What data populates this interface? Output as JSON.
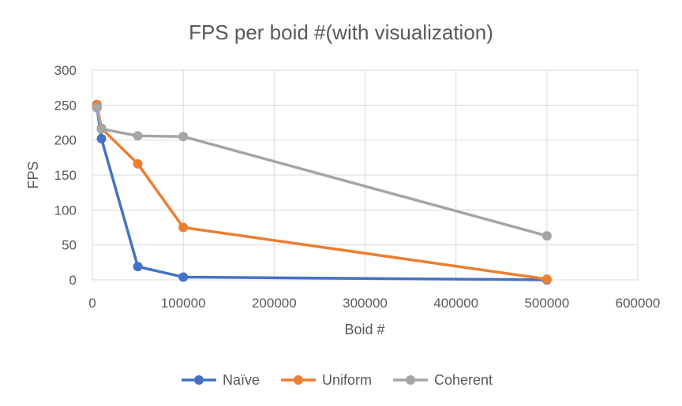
{
  "chart_data": {
    "type": "line",
    "title": "FPS per boid #(with visualization)",
    "xlabel": "Boid #",
    "ylabel": "FPS",
    "xlim": [
      0,
      600000
    ],
    "ylim": [
      0,
      300
    ],
    "xticks": [
      "0",
      "100000",
      "200000",
      "300000",
      "400000",
      "500000",
      "600000"
    ],
    "yticks": [
      "0",
      "50",
      "100",
      "150",
      "200",
      "250",
      "300"
    ],
    "grid": true,
    "legend_position": "bottom",
    "series": [
      {
        "name": "Naïve",
        "color": "#4472c4",
        "x": [
          5000,
          10000,
          50000,
          100000,
          500000
        ],
        "y": [
          247,
          202,
          19,
          4,
          0
        ]
      },
      {
        "name": "Uniform",
        "color": "#ed7d31",
        "x": [
          5000,
          10000,
          50000,
          100000,
          500000
        ],
        "y": [
          251,
          217,
          166,
          75,
          1
        ]
      },
      {
        "name": "Coherent",
        "color": "#a5a5a5",
        "x": [
          5000,
          10000,
          50000,
          100000,
          500000
        ],
        "y": [
          246,
          216,
          206,
          205,
          63
        ]
      }
    ]
  }
}
